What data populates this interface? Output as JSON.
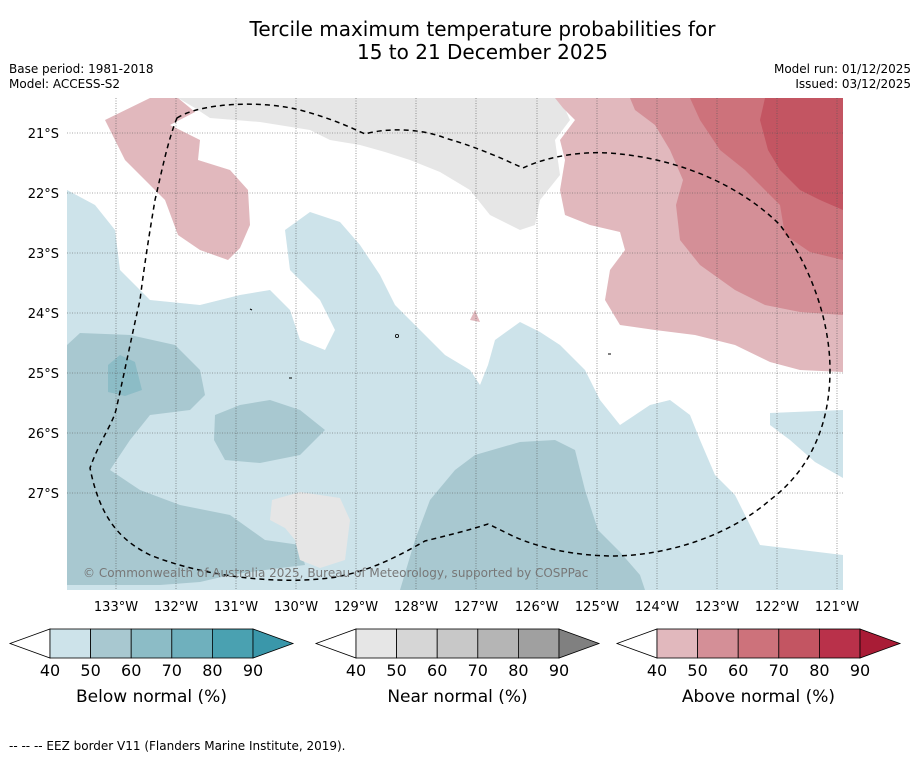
{
  "title_line1": "Tercile maximum temperature probabilities for",
  "title_line2": "15 to 21 December 2025",
  "base_period": "Base period: 1981-2018",
  "model": "Model: ACCESS-S2",
  "model_run": "Model run: 01/12/2025",
  "issued": "Issued: 03/12/2025",
  "copyright": "© Commonwealth of Australia 2025, Bureau of Meteorology, supported by COSPPac",
  "lat_labels": [
    "21°S",
    "22°S",
    "23°S",
    "24°S",
    "25°S",
    "26°S",
    "27°S"
  ],
  "lon_labels": [
    "133°W",
    "132°W",
    "131°W",
    "130°W",
    "129°W",
    "128°W",
    "127°W",
    "126°W",
    "125°W",
    "124°W",
    "123°W",
    "122°W",
    "121°W"
  ],
  "colorbars": [
    {
      "id": "below",
      "label": "Below normal (%)",
      "ticks": [
        "40",
        "50",
        "60",
        "70",
        "80",
        "90"
      ],
      "colors": [
        "#cde3ea",
        "#a8c8d0",
        "#8cbcc6",
        "#6fb0bd",
        "#4aa1b1",
        "#3a97aa"
      ]
    },
    {
      "id": "near",
      "label": "Near normal (%)",
      "ticks": [
        "40",
        "50",
        "60",
        "70",
        "80",
        "90"
      ],
      "colors": [
        "#e6e6e6",
        "#d6d6d6",
        "#c8c8c8",
        "#b5b5b5",
        "#a0a0a0",
        "#808080"
      ]
    },
    {
      "id": "above",
      "label": "Above normal (%)",
      "ticks": [
        "40",
        "50",
        "60",
        "70",
        "80",
        "90"
      ],
      "colors": [
        "#e1b8bd",
        "#d48f97",
        "#cd727b",
        "#c35562",
        "#b9314a",
        "#a91c36"
      ]
    }
  ],
  "footer": "--  --  -- EEZ border V11 (Flanders Marine Institute, 2019)."
}
